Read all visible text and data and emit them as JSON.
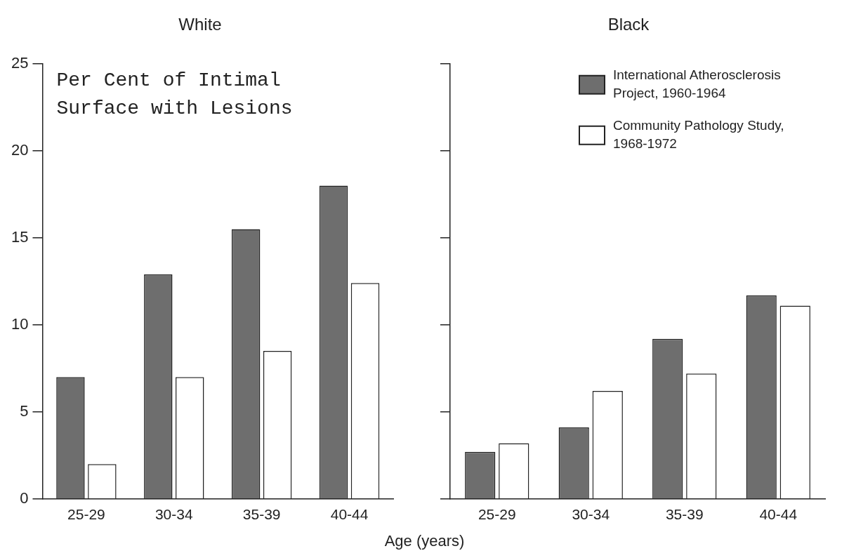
{
  "chart_data": [
    {
      "type": "bar",
      "title": "White",
      "xlabel": "Age (years)",
      "categories": [
        "25-29",
        "30-34",
        "35-39",
        "40-44"
      ],
      "series": [
        {
          "color": "#6e6e6e",
          "values": [
            7.0,
            12.9,
            15.5,
            18.0
          ]
        },
        {
          "color": "#ffffff",
          "values": [
            2.0,
            7.0,
            8.5,
            12.4
          ]
        }
      ],
      "ylim": [
        0,
        25
      ],
      "yticks": [
        0,
        5,
        10,
        15,
        20,
        25
      ],
      "grid": false,
      "legend": false,
      "annotations": [
        "Per Cent of Intimal Surface with Lesions"
      ]
    },
    {
      "type": "bar",
      "title": "Black",
      "categories": [
        "25-29",
        "30-34",
        "35-39",
        "40-44"
      ],
      "series": [
        {
          "name": "International Atherosclerosis Project, 1960-1964",
          "color": "#6e6e6e",
          "values": [
            2.7,
            4.1,
            9.2,
            11.7
          ]
        },
        {
          "name": "Community Pathology Study, 1968-1972",
          "color": "#ffffff",
          "values": [
            3.2,
            6.2,
            7.2,
            11.1
          ]
        }
      ],
      "ylim": [
        0,
        25
      ],
      "yticks": [
        0,
        5,
        10,
        15,
        20,
        25
      ],
      "grid": false,
      "legend": "top right",
      "tick_labels": "x"
    }
  ]
}
